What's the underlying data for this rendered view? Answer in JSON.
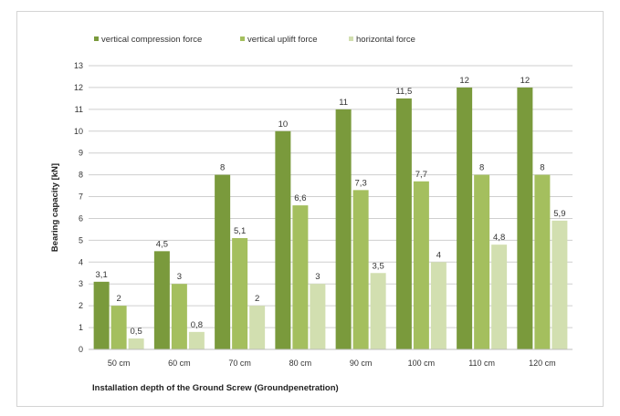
{
  "chart_data": {
    "type": "bar",
    "categories": [
      "50 cm",
      "60 cm",
      "70 cm",
      "80 cm",
      "90 cm",
      "100 cm",
      "110 cm",
      "120 cm"
    ],
    "series": [
      {
        "name": "vertical compression force",
        "values": [
          3.1,
          4.5,
          8,
          10,
          11,
          11.5,
          12,
          12
        ],
        "labels": [
          "3,1",
          "4,5",
          "8",
          "10",
          "11",
          "11,5",
          "12",
          "12"
        ],
        "color": "#7a9a3c"
      },
      {
        "name": "vertical uplift force",
        "values": [
          2,
          3,
          5.1,
          6.6,
          7.3,
          7.7,
          8,
          8
        ],
        "labels": [
          "2",
          "3",
          "5,1",
          "6,6",
          "7,3",
          "7,7",
          "8",
          "8"
        ],
        "color": "#a4bf5e"
      },
      {
        "name": "horizontal force",
        "values": [
          0.5,
          0.8,
          2,
          3,
          3.5,
          4,
          4.8,
          5.9
        ],
        "labels": [
          "0,5",
          "0,8",
          "2",
          "3",
          "3,5",
          "4",
          "4,8",
          "5,9"
        ],
        "color": "#d2dfb0"
      }
    ],
    "title": "",
    "xlabel": "Installation depth of the Ground Screw (Groundpenetration)",
    "ylabel": "Bearing capacity [kN]",
    "ylim": [
      0,
      13
    ],
    "yticks": [
      0,
      1,
      2,
      3,
      4,
      5,
      6,
      7,
      8,
      9,
      10,
      11,
      12,
      13
    ],
    "grid": true,
    "legend": "top"
  }
}
